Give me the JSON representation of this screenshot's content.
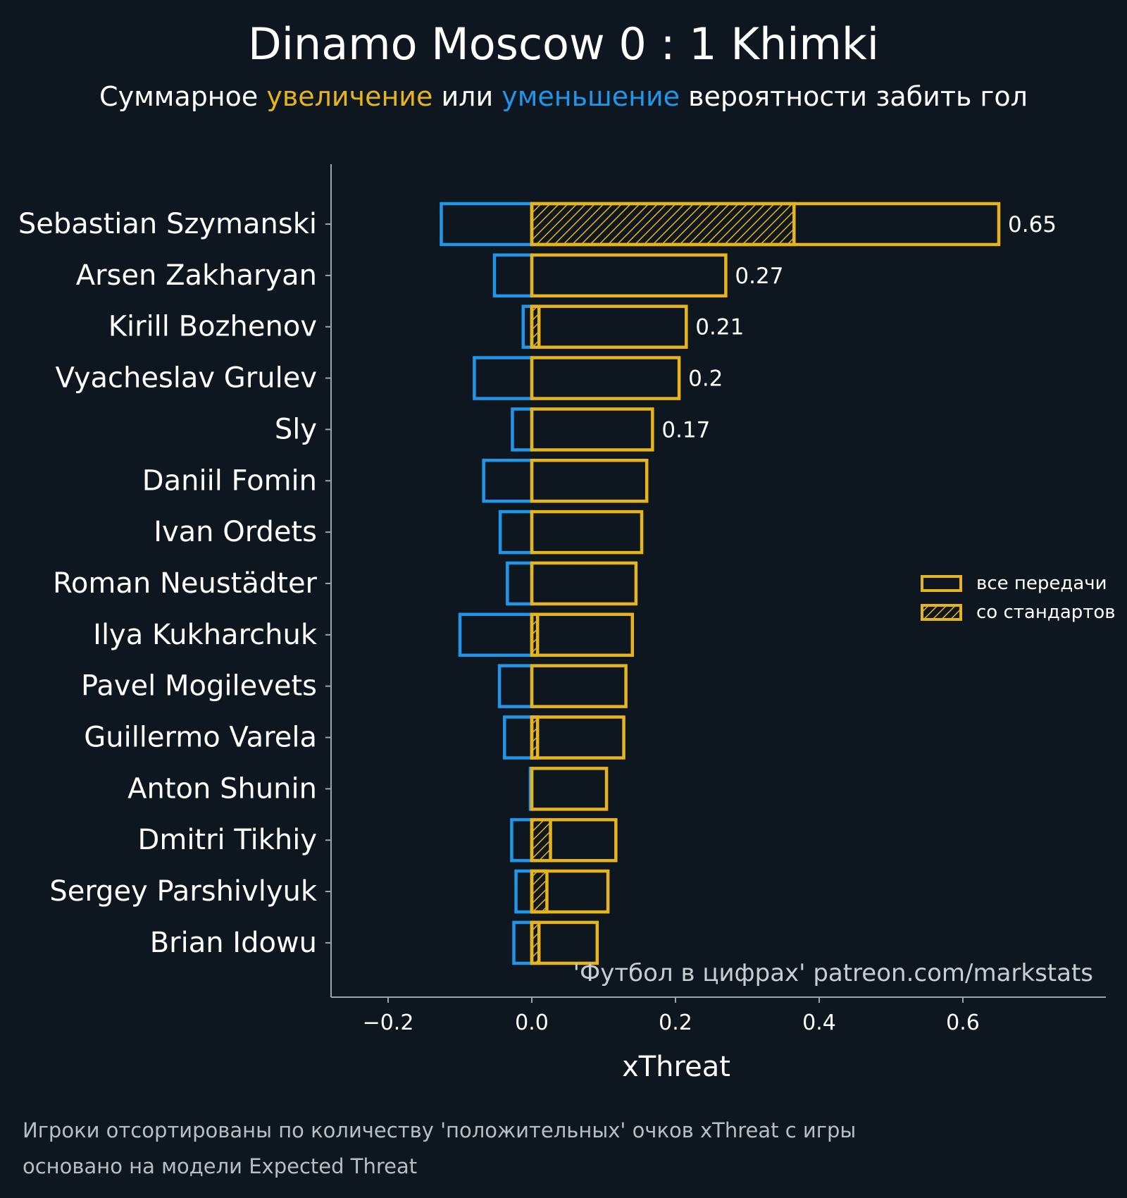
{
  "chart_data": {
    "type": "bar",
    "orientation": "horizontal",
    "title": "Dinamo Moscow 0 : 1 Khimki",
    "subtitle": {
      "before": "Суммарное ",
      "increase_word": "увеличение",
      "middle": " или ",
      "decrease_word": "уменьшение",
      "after": " вероятности забить гол"
    },
    "xlabel": "xThreat",
    "xlim": [
      -0.28,
      0.8
    ],
    "xticks": [
      -0.2,
      0.0,
      0.2,
      0.4,
      0.6
    ],
    "xtick_labels": [
      "−0.2",
      "0.0",
      "0.2",
      "0.4",
      "0.6"
    ],
    "grid": false,
    "legend_position": "right",
    "legend": [
      {
        "label": "все передачи",
        "style": "outline"
      },
      {
        "label": "со стандартов",
        "style": "hatched"
      }
    ],
    "colors": {
      "increase": "#e6b41e",
      "decrease": "#2196e8",
      "background": "#0e1720",
      "axis": "#9aa6ad"
    },
    "players": [
      "Sebastian Szymanski",
      "Arsen Zakharyan",
      "Kirill Bozhenov",
      "Vyacheslav Grulev",
      "Sly",
      "Daniil Fomin",
      "Ivan Ordets",
      "Roman Neustädter",
      "Ilya Kukharchuk",
      "Pavel Mogilevets",
      "Guillermo Varela",
      "Anton Shunin",
      "Dmitri Tikhiy",
      "Sergey Parshivlyuk",
      "Brian Idowu"
    ],
    "series": [
      {
        "name": "все передачи",
        "values": [
          0.65,
          0.27,
          0.215,
          0.205,
          0.168,
          0.16,
          0.153,
          0.145,
          0.14,
          0.131,
          0.128,
          0.104,
          0.117,
          0.106,
          0.091
        ]
      },
      {
        "values": [
          -0.126,
          -0.052,
          -0.012,
          -0.08,
          -0.027,
          -0.067,
          -0.044,
          -0.034,
          -0.1,
          -0.045,
          -0.038,
          -0.002,
          -0.028,
          -0.022,
          -0.025
        ]
      },
      {
        "name": "со стандартов",
        "values": [
          0.365,
          0.0,
          0.01,
          0.0,
          0.0,
          0.0,
          0.0,
          0.0,
          0.008,
          0.0,
          0.008,
          0.0,
          0.026,
          0.021,
          0.01
        ]
      }
    ],
    "value_labels": [
      "0.65",
      "0.27",
      "0.21",
      "0.2",
      "0.17",
      "",
      "",
      "",
      "",
      "",
      "",
      "",
      "",
      "",
      ""
    ],
    "watermark": "'Футбол в цифрах' patreon.com/markstats",
    "footnotes": [
      "Игроки отсортированы по количеству 'положительных' очков xThreat с игры",
      "основано на модели Expected Threat"
    ]
  }
}
